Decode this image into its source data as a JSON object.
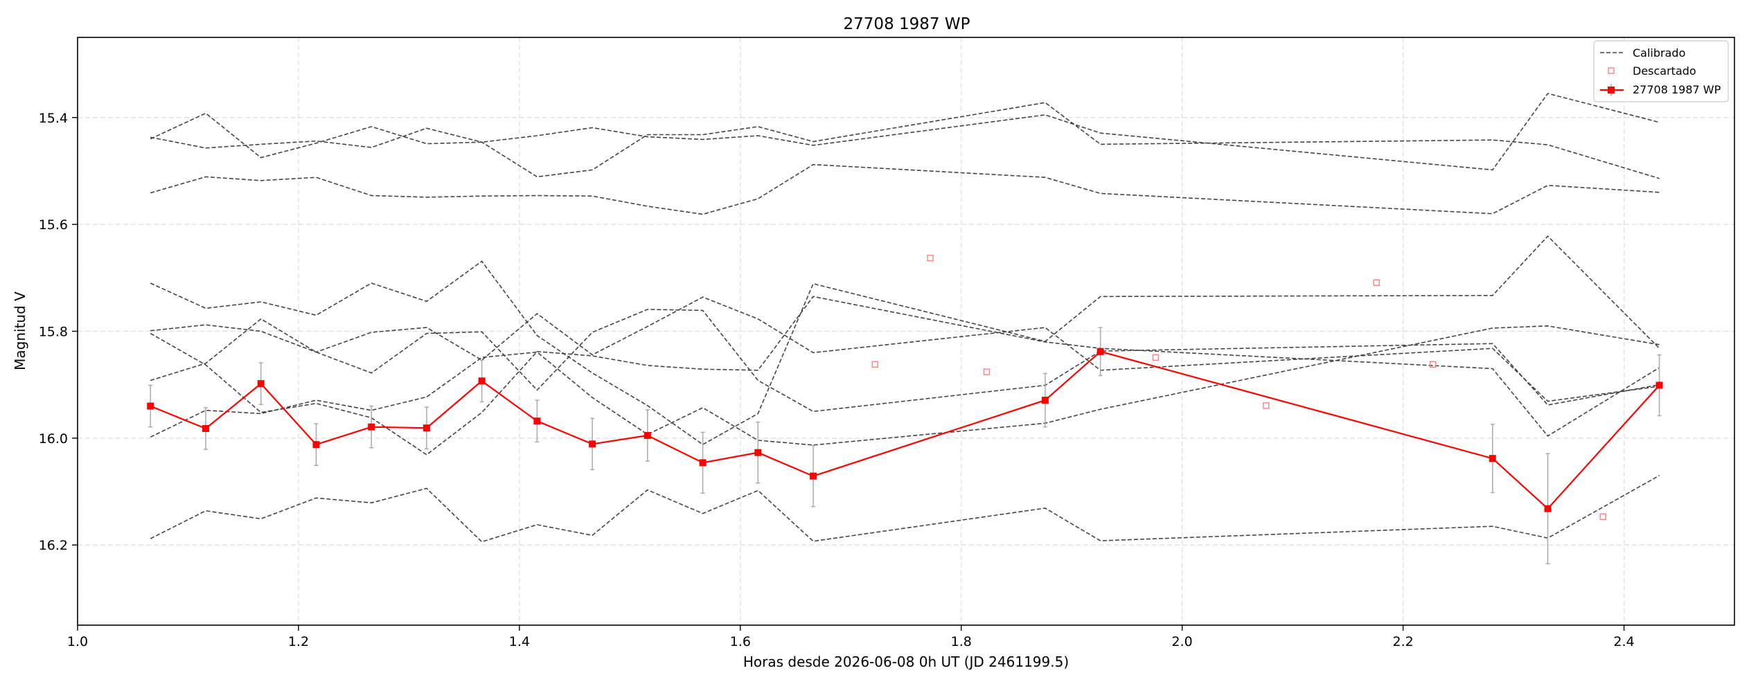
{
  "chart_data": {
    "type": "line",
    "title": "27708 1987 WP",
    "xlabel": "Horas desde 2026-06-08 0h UT (JD 2461199.5)",
    "ylabel": "Magnitud V",
    "xlim": [
      1.0,
      2.5
    ],
    "ylim": [
      16.35,
      15.25
    ],
    "y_inverted": true,
    "grid": true,
    "legend_position": "top-right",
    "xticks": [
      1.0,
      1.2,
      1.4,
      1.6,
      1.8,
      2.0,
      2.2,
      2.4
    ],
    "xtick_labels": [
      "1.0",
      "1.2",
      "1.4",
      "1.6",
      "1.8",
      "2.0",
      "2.2",
      "2.4"
    ],
    "yticks": [
      15.4,
      15.6,
      15.8,
      16.0,
      16.2
    ],
    "ytick_labels": [
      "15.4",
      "15.6",
      "15.8",
      "16.0",
      "16.2"
    ],
    "legend": {
      "calibrated": "Calibrado",
      "discarded": "Descartado",
      "target": "27708 1987 WP"
    },
    "colors": {
      "calibrated": "#444444",
      "target": "#ff0000",
      "discarded": "#ff8080",
      "errorbar": "#aaaaaa",
      "grid": "#dddddd"
    },
    "calibrated_series": [
      {
        "x": [
          1.066,
          1.116,
          1.166,
          1.216,
          1.266,
          1.316,
          1.366,
          1.416,
          1.466,
          1.516,
          1.566,
          1.616,
          1.666,
          1.876,
          1.926,
          2.281,
          2.331,
          2.432
        ],
        "y": [
          15.437,
          15.457,
          15.45,
          15.444,
          15.456,
          15.42,
          15.446,
          15.511,
          15.498,
          15.432,
          15.432,
          15.417,
          15.445,
          15.372,
          15.45,
          15.442,
          15.451,
          15.514
        ]
      },
      {
        "x": [
          1.066,
          1.116,
          1.166,
          1.216,
          1.266,
          1.316,
          1.366,
          1.416,
          1.466,
          1.516,
          1.566,
          1.616,
          1.666,
          1.876,
          1.926,
          2.281,
          2.331,
          2.432
        ],
        "y": [
          15.44,
          15.392,
          15.475,
          15.448,
          15.417,
          15.449,
          15.446,
          15.434,
          15.419,
          15.436,
          15.441,
          15.434,
          15.452,
          15.395,
          15.429,
          15.498,
          15.355,
          15.409
        ]
      },
      {
        "x": [
          1.066,
          1.116,
          1.166,
          1.216,
          1.266,
          1.316,
          1.366,
          1.416,
          1.466,
          1.516,
          1.566,
          1.616,
          1.666,
          1.876,
          1.926,
          2.281,
          2.331,
          2.432
        ],
        "y": [
          15.541,
          15.511,
          15.518,
          15.512,
          15.546,
          15.549,
          15.547,
          15.546,
          15.547,
          15.566,
          15.581,
          15.552,
          15.488,
          15.512,
          15.542,
          15.58,
          15.527,
          15.54
        ]
      },
      {
        "x": [
          1.066,
          1.116,
          1.166,
          1.216,
          1.266,
          1.316,
          1.366,
          1.416,
          1.466,
          1.516,
          1.566,
          1.616,
          1.666,
          1.876,
          1.926,
          2.281,
          2.331,
          2.432
        ],
        "y": [
          15.71,
          15.757,
          15.745,
          15.77,
          15.71,
          15.744,
          15.669,
          15.808,
          15.878,
          15.939,
          16.012,
          15.954,
          15.711,
          15.819,
          15.735,
          15.733,
          15.622,
          15.832
        ]
      },
      {
        "x": [
          1.066,
          1.116,
          1.166,
          1.216,
          1.266,
          1.316,
          1.366,
          1.416,
          1.466,
          1.516,
          1.566,
          1.616,
          1.666,
          1.876,
          1.926,
          2.281,
          2.331,
          2.432
        ],
        "y": [
          15.799,
          15.788,
          15.8,
          15.839,
          15.802,
          15.793,
          15.854,
          15.767,
          15.844,
          15.791,
          15.736,
          15.777,
          15.84,
          15.793,
          15.873,
          15.832,
          15.931,
          15.903
        ]
      },
      {
        "x": [
          1.066,
          1.116,
          1.166,
          1.216,
          1.266,
          1.316,
          1.366,
          1.416,
          1.466,
          1.516,
          1.566,
          1.616,
          1.666,
          1.876,
          1.926,
          2.281,
          2.331,
          2.432
        ],
        "y": [
          15.804,
          15.863,
          15.952,
          15.935,
          15.962,
          16.031,
          15.952,
          15.838,
          15.846,
          15.864,
          15.871,
          15.873,
          15.735,
          15.82,
          15.832,
          15.87,
          15.996,
          15.868
        ]
      },
      {
        "x": [
          1.066,
          1.116,
          1.166,
          1.216,
          1.266,
          1.316,
          1.366,
          1.416,
          1.466,
          1.516,
          1.566,
          1.616,
          1.666,
          1.876,
          1.926,
          2.281,
          2.331,
          2.432
        ],
        "y": [
          15.892,
          15.86,
          15.777,
          15.839,
          15.878,
          15.804,
          15.801,
          15.91,
          15.802,
          15.759,
          15.761,
          15.892,
          15.95,
          15.901,
          15.837,
          15.823,
          15.938,
          15.9
        ]
      },
      {
        "x": [
          1.066,
          1.116,
          1.166,
          1.216,
          1.266,
          1.316,
          1.366,
          1.416,
          1.466,
          1.516,
          1.566,
          1.616,
          1.666,
          1.876,
          1.926,
          2.281,
          2.331,
          2.432
        ],
        "y": [
          15.998,
          15.948,
          15.954,
          15.929,
          15.948,
          15.923,
          15.849,
          15.839,
          15.924,
          15.993,
          15.943,
          16.004,
          16.013,
          15.972,
          15.946,
          15.794,
          15.79,
          15.825
        ]
      },
      {
        "x": [
          1.066,
          1.116,
          1.166,
          1.216,
          1.266,
          1.316,
          1.366,
          1.416,
          1.466,
          1.516,
          1.566,
          1.616,
          1.666,
          1.876,
          1.926,
          2.281,
          2.331,
          2.432
        ],
        "y": [
          16.188,
          16.136,
          16.151,
          16.112,
          16.121,
          16.094,
          16.194,
          16.162,
          16.182,
          16.097,
          16.141,
          16.098,
          16.193,
          16.131,
          16.192,
          16.165,
          16.187,
          16.07
        ]
      }
    ],
    "target_series": {
      "name": "27708 1987 WP",
      "x": [
        1.066,
        1.116,
        1.166,
        1.216,
        1.266,
        1.316,
        1.366,
        1.416,
        1.466,
        1.516,
        1.566,
        1.616,
        1.666,
        1.876,
        1.926,
        2.281,
        2.331,
        2.432
      ],
      "y": [
        15.94,
        15.982,
        15.898,
        16.012,
        15.979,
        15.981,
        15.893,
        15.968,
        16.011,
        15.995,
        16.046,
        16.027,
        16.071,
        15.929,
        15.838,
        16.038,
        16.132,
        15.901
      ],
      "err": [
        0.039,
        0.039,
        0.039,
        0.039,
        0.039,
        0.039,
        0.039,
        0.039,
        0.048,
        0.048,
        0.057,
        0.057,
        0.057,
        0.05,
        0.045,
        0.064,
        0.103,
        0.057
      ]
    },
    "discarded_points": {
      "x": [
        1.722,
        1.772,
        1.823,
        1.976,
        2.076,
        2.176,
        2.227,
        2.381
      ],
      "y": [
        15.862,
        15.663,
        15.876,
        15.849,
        15.939,
        15.709,
        15.862,
        16.147
      ]
    }
  }
}
